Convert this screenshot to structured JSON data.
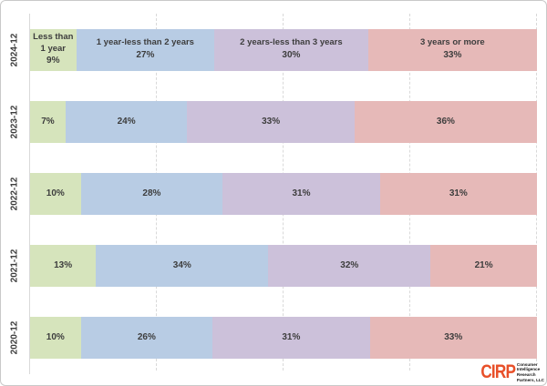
{
  "chart_data": {
    "type": "bar",
    "orientation": "horizontal-stacked",
    "categories": [
      "2024-12",
      "2023-12",
      "2022-12",
      "2021-12",
      "2020-12"
    ],
    "series": [
      {
        "name": "Less than 1 year",
        "values": [
          9,
          7,
          10,
          13,
          10
        ],
        "color": "#d6e4bc"
      },
      {
        "name": "1 year-less than 2 years",
        "values": [
          27,
          24,
          28,
          34,
          26
        ],
        "color": "#b8cce4"
      },
      {
        "name": "2 years-less than 3 years",
        "values": [
          30,
          33,
          31,
          32,
          31
        ],
        "color": "#ccc1da"
      },
      {
        "name": "3 years or more",
        "values": [
          33,
          36,
          31,
          21,
          33
        ],
        "color": "#e6b9b8"
      }
    ],
    "value_suffix": "%",
    "xlim": [
      0,
      100
    ],
    "gridlines_pct": [
      25,
      50,
      75,
      100
    ],
    "first_row_shows_series_names": true,
    "title": "",
    "xlabel": "",
    "ylabel": "",
    "legend_position": "in-first-bar",
    "grid": "dashed-vertical"
  },
  "logo": {
    "abbr": "CIRP",
    "lines": [
      "Consumer",
      "Intelligence",
      "Research",
      "Partners, LLC"
    ],
    "color": "#e84f28"
  },
  "colors": {
    "label_text": "#3d3d3d",
    "gridline": "#d9d9d9",
    "axis_line": "#d9d9d9",
    "frame_border": "#c9c9c9",
    "background": "#ffffff"
  }
}
